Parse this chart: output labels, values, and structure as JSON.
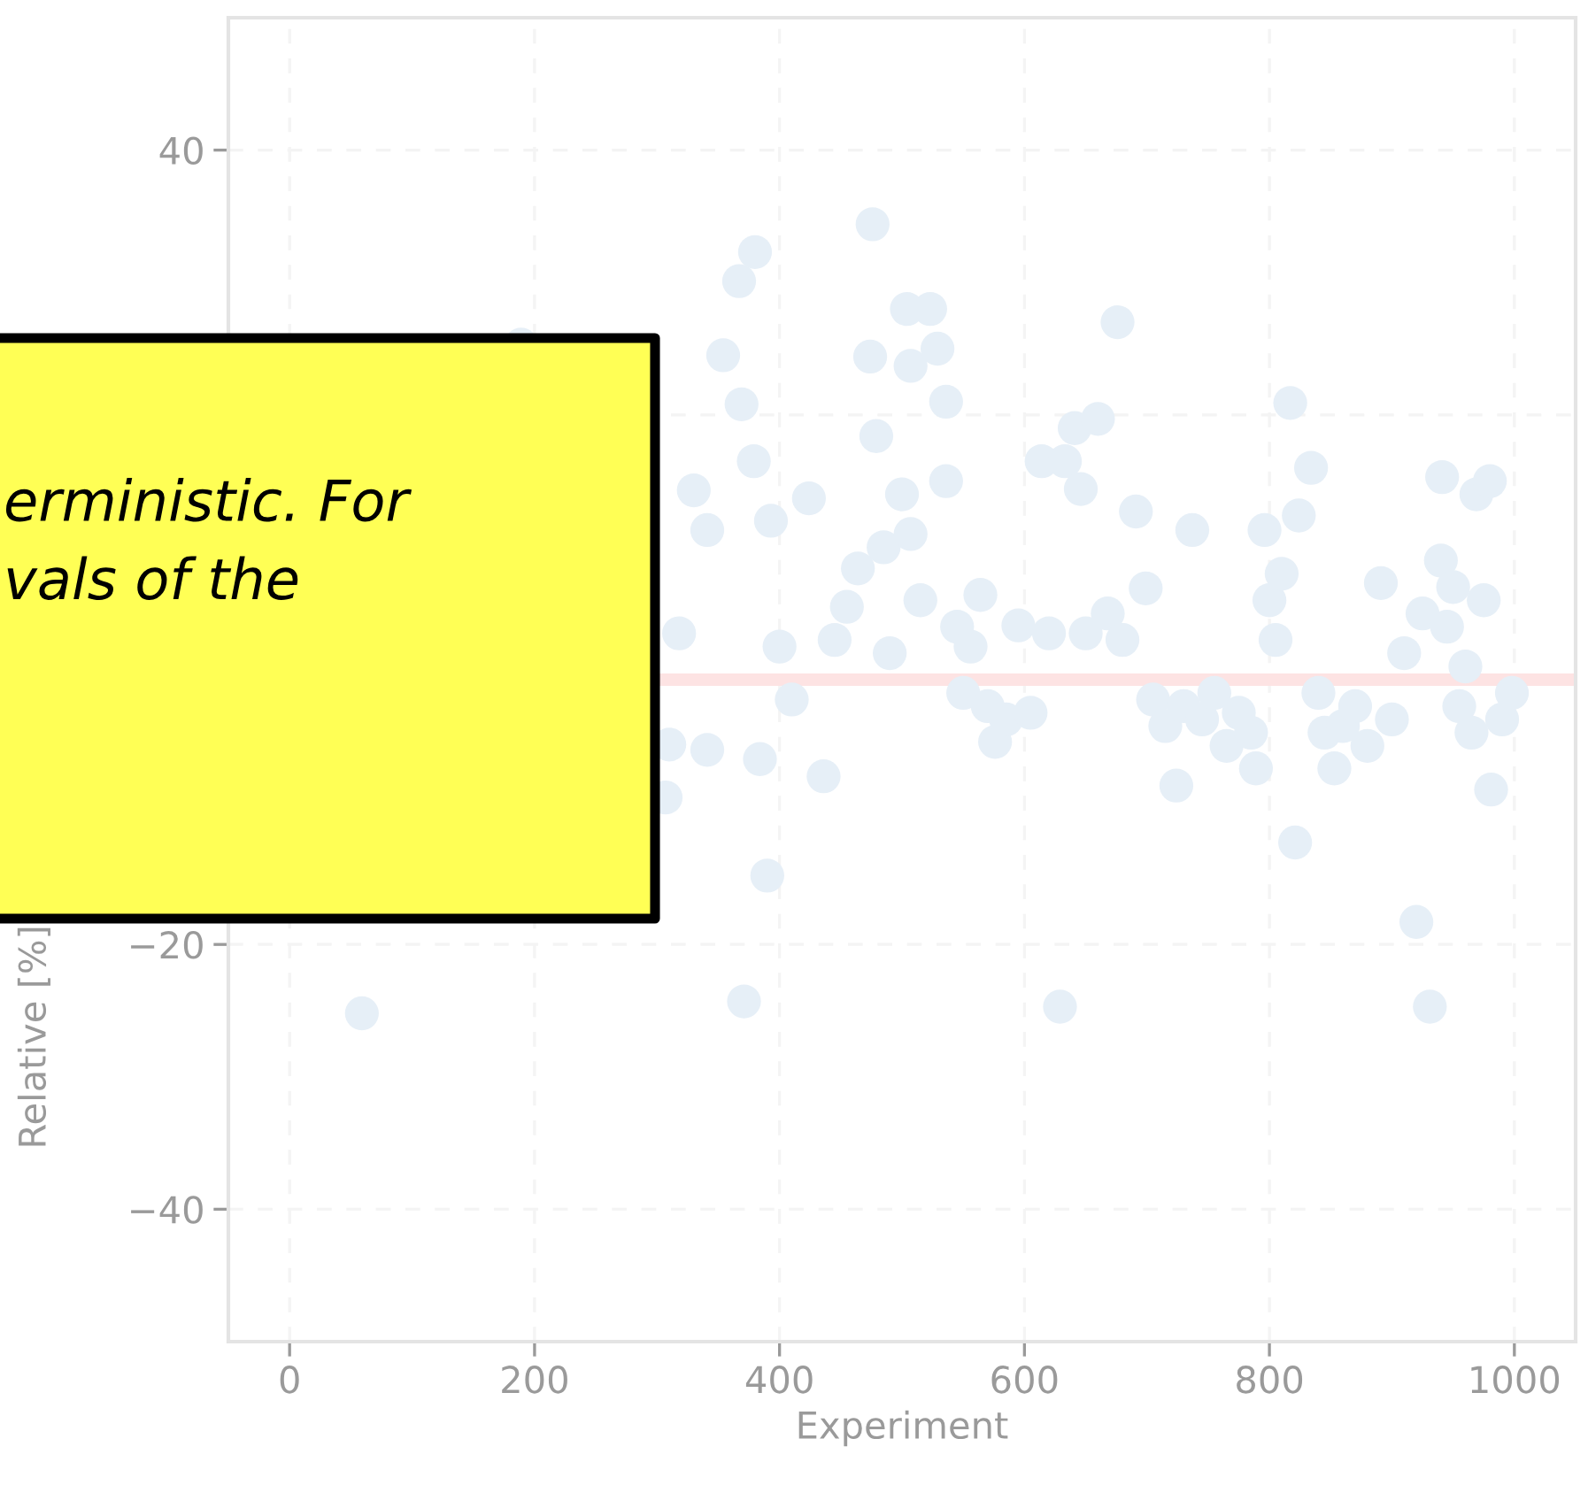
{
  "chart_data": {
    "type": "scatter",
    "xlabel": "Experiment",
    "ylabel": "Relative [%]",
    "annotations": [
      "erministic. For\nvals of the"
    ],
    "xlim": [
      -50,
      1050
    ],
    "ylim": [
      -50,
      50
    ],
    "xticks": [
      0,
      200,
      400,
      600,
      800,
      1000
    ],
    "yticks": [
      -40,
      -20,
      {
        "value": 0,
        "label": null
      },
      {
        "value": 20,
        "label": null
      },
      40
    ],
    "grid": true,
    "marker": "circle",
    "ref_lines": [
      {
        "axis": "y",
        "value": 0,
        "color": "#fde3e3"
      }
    ],
    "series": [
      {
        "color": "#e6eff7",
        "x": [
          59,
          189,
          307,
          310,
          318,
          330,
          341,
          341,
          354,
          367,
          369,
          371,
          379,
          380,
          384,
          390,
          393,
          400,
          410,
          424,
          436,
          445,
          455,
          464,
          474,
          476,
          479,
          485,
          490,
          500,
          504,
          507,
          507,
          515,
          523,
          529,
          536,
          536,
          545,
          550,
          556,
          564,
          570,
          576,
          585,
          595,
          605,
          614,
          620,
          629,
          633,
          641,
          646,
          650,
          660,
          668,
          676,
          680,
          691,
          699,
          705,
          715,
          724,
          730,
          737,
          745,
          755,
          765,
          775,
          785,
          789,
          796,
          800,
          805,
          810,
          817,
          821,
          824,
          834,
          840,
          845,
          853,
          860,
          870,
          880,
          891,
          900,
          910,
          920,
          925,
          931,
          940,
          941,
          945,
          950,
          955,
          960,
          965,
          969,
          975,
          980,
          981,
          990,
          998
        ],
        "values": [
          -25.2,
          25.3,
          -8.9,
          -4.9,
          3.5,
          14.3,
          11.3,
          -5.3,
          24.5,
          30.1,
          20.8,
          -24.3,
          16.5,
          32.3,
          -6,
          -14.8,
          12,
          2.5,
          -1.5,
          13.7,
          -7.3,
          3,
          5.5,
          8.4,
          24.4,
          34.4,
          18.4,
          10,
          2,
          14,
          28,
          11,
          23.7,
          6,
          28,
          25,
          21,
          15,
          4,
          -1,
          2.5,
          6.4,
          -2,
          -4.7,
          -3,
          4.1,
          -2.5,
          16.5,
          3.5,
          -24.7,
          16.5,
          19,
          14.4,
          3.5,
          19.7,
          5,
          27,
          3,
          12.7,
          6.9,
          -1.5,
          -3.5,
          -8,
          -2,
          11.3,
          -3,
          -1,
          -5,
          -2.5,
          -4,
          -6.7,
          11.3,
          6,
          3,
          8,
          20.9,
          -12.3,
          12.4,
          16,
          -1,
          -4,
          -6.7,
          -3.5,
          -2,
          -5,
          7.3,
          -3,
          2,
          -18.3,
          5,
          -24.7,
          9,
          15.3,
          4,
          7,
          -2,
          1,
          -4,
          14,
          6,
          15,
          -8.3,
          -3,
          -1
        ]
      }
    ]
  }
}
